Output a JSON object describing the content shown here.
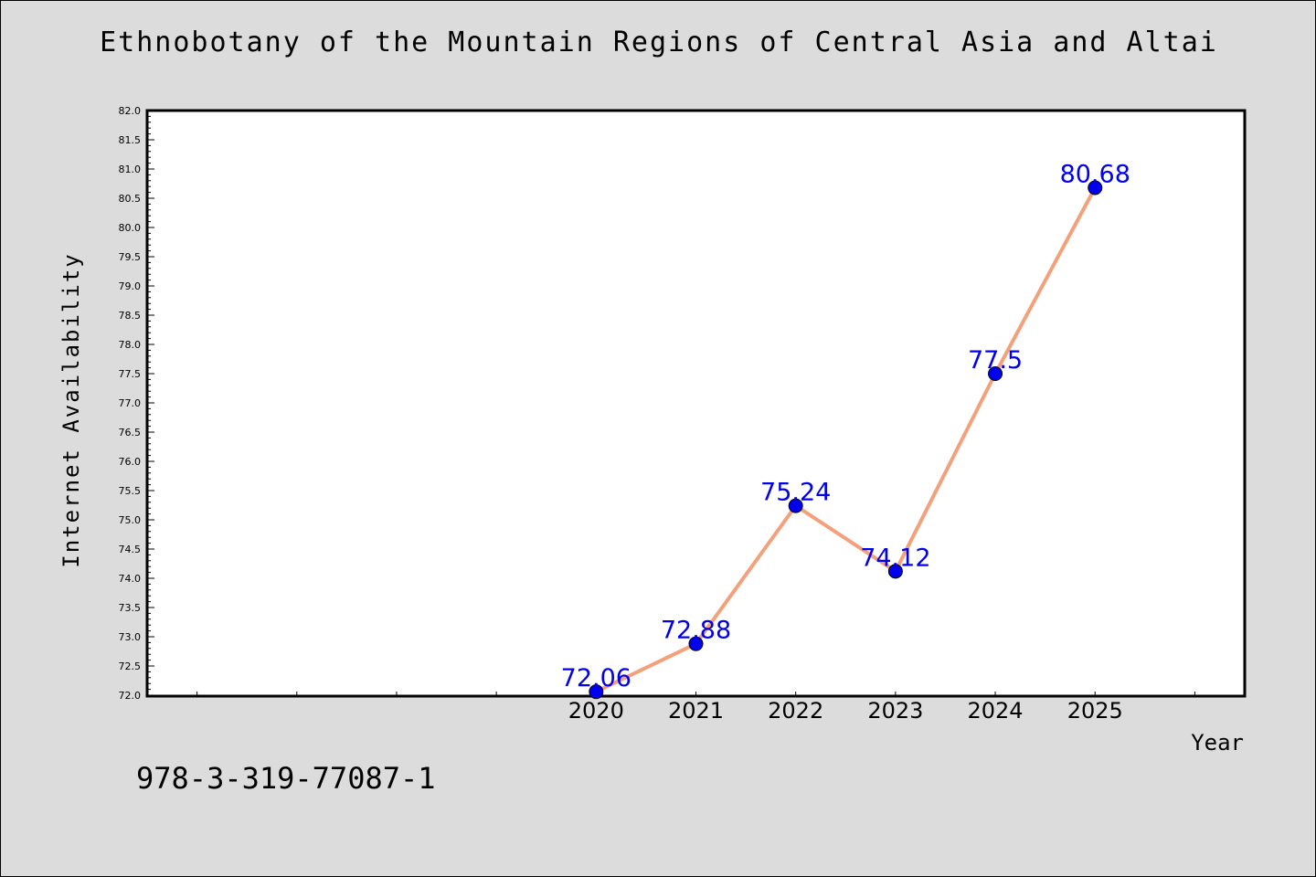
{
  "chart_data": {
    "type": "line",
    "title": "Ethnobotany of the Mountain Regions of Central Asia and Altai",
    "xlabel": "Year",
    "ylabel": "Internet Availability",
    "x": [
      2020,
      2021,
      2022,
      2023,
      2024,
      2025
    ],
    "x_tick_labels": [
      "2020",
      "2021",
      "2022",
      "2023",
      "2024",
      "2025"
    ],
    "xlim": [
      2015.5,
      2026.5
    ],
    "ylim": [
      72.0,
      82.0
    ],
    "y_tick_labels": [
      "72.0",
      "72.5",
      "73.0",
      "73.5",
      "74.0",
      "74.5",
      "75.0",
      "75.5",
      "76.0",
      "76.5",
      "77.0",
      "77.5",
      "78.0",
      "78.5",
      "79.0",
      "79.5",
      "80.0",
      "80.5",
      "81.0",
      "81.5",
      "82.0"
    ],
    "series": [
      {
        "values": [
          72.06,
          72.88,
          75.24,
          74.12,
          77.5,
          80.68
        ],
        "data_labels": [
          "72.06",
          "72.88",
          "75.24",
          "74.12",
          "77.5",
          "80.68"
        ],
        "line_color": "#f4a07a",
        "marker_color": "#0000ee",
        "label_color": "#0000ee"
      }
    ],
    "grid": false,
    "legend": "none"
  },
  "footer": {
    "isbn": "978-3-319-77087-1"
  },
  "colors": {
    "background": "#dcdcdc",
    "plot_background": "#ffffff",
    "axis": "#000000"
  }
}
